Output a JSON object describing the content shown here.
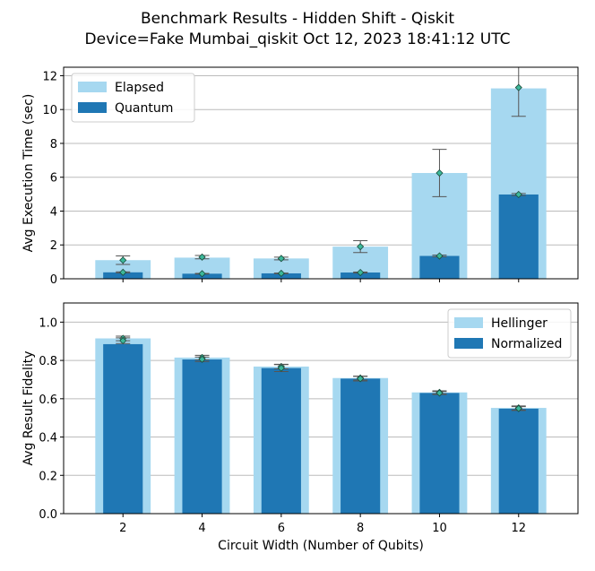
{
  "title_line1": "Benchmark Results - Hidden Shift - Qiskit",
  "title_line2": "Device=Fake Mumbai_qiskit  Oct 12, 2023 18:41:12 UTC",
  "colors": {
    "light": "#a6d8f0",
    "dark": "#1f77b4",
    "marker": "#3cb89a",
    "grid": "#bbbbbb",
    "errorbar": "#555555"
  },
  "chart_data": [
    {
      "type": "bar",
      "x": [
        2,
        4,
        6,
        8,
        10,
        12
      ],
      "xticks": [
        2,
        4,
        6,
        8,
        10,
        12
      ],
      "xlim": [
        0.5,
        13.5
      ],
      "ylabel": "Avg Execution Time (sec)",
      "ylim": [
        0,
        12.5
      ],
      "yticks": [
        0,
        2,
        4,
        6,
        8,
        10,
        12
      ],
      "grid": true,
      "legend_position": "top-left",
      "series": [
        {
          "name": "Elapsed",
          "style": "light",
          "values": [
            1.1,
            1.25,
            1.2,
            1.9,
            6.25,
            11.25
          ],
          "markers": [
            1.1,
            1.28,
            1.2,
            1.9,
            6.25,
            11.3
          ],
          "error": [
            0.25,
            0.1,
            0.08,
            0.35,
            1.4,
            1.7
          ]
        },
        {
          "name": "Quantum",
          "style": "dark",
          "values": [
            0.38,
            0.3,
            0.32,
            0.37,
            1.35,
            4.98
          ],
          "markers": [
            0.38,
            0.3,
            0.32,
            0.37,
            1.35,
            4.98
          ],
          "error": [
            0.03,
            0.02,
            0.02,
            0.03,
            0.05,
            0.06
          ]
        }
      ]
    },
    {
      "type": "bar",
      "x": [
        2,
        4,
        6,
        8,
        10,
        12
      ],
      "xticks": [
        2,
        4,
        6,
        8,
        10,
        12
      ],
      "xlim": [
        0.5,
        13.5
      ],
      "xlabel": "Circuit Width (Number of Qubits)",
      "ylabel": "Avg Result Fidelity",
      "ylim": [
        0,
        1.1
      ],
      "yticks": [
        0.0,
        0.2,
        0.4,
        0.6,
        0.8,
        1.0
      ],
      "grid": true,
      "legend_position": "top-right",
      "series": [
        {
          "name": "Hellinger",
          "style": "light",
          "values": [
            0.915,
            0.815,
            0.768,
            0.708,
            0.633,
            0.552
          ],
          "markers": [
            0.915,
            0.815,
            0.768,
            0.708,
            0.633,
            0.552
          ],
          "error": [
            0.012,
            0.012,
            0.012,
            0.01,
            0.008,
            0.01
          ]
        },
        {
          "name": "Normalized",
          "style": "dark",
          "values": [
            0.885,
            0.805,
            0.76,
            0.705,
            0.63,
            0.548
          ],
          "markers": [
            0.903,
            0.806,
            0.76,
            0.705,
            0.63,
            0.549
          ],
          "error": [
            0.015,
            0.012,
            0.018,
            0.012,
            0.008,
            0.01
          ]
        }
      ]
    }
  ]
}
